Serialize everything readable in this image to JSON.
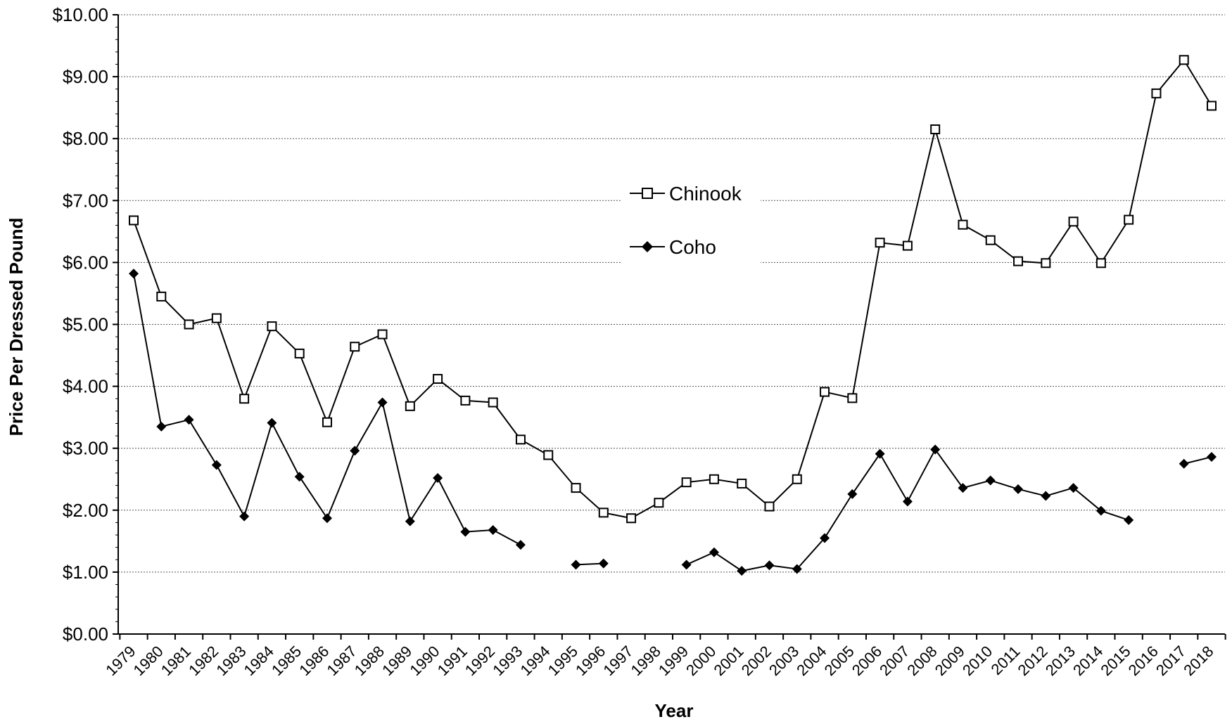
{
  "chart_data": {
    "type": "line",
    "title": "",
    "xlabel": "Year",
    "ylabel": "Price Per Dressed Pound",
    "ylim": [
      0,
      10
    ],
    "y_ticks": [
      "$0.00",
      "$1.00",
      "$2.00",
      "$3.00",
      "$4.00",
      "$5.00",
      "$6.00",
      "$7.00",
      "$8.00",
      "$9.00",
      "$10.00"
    ],
    "y_tick_values": [
      0,
      1,
      2,
      3,
      4,
      5,
      6,
      7,
      8,
      9,
      10
    ],
    "grid": "horizontal dotted",
    "legend_position": "center",
    "categories": [
      "1979",
      "1980",
      "1981",
      "1982",
      "1983",
      "1984",
      "1985",
      "1986",
      "1987",
      "1988",
      "1989",
      "1990",
      "1991",
      "1992",
      "1993",
      "1994",
      "1995",
      "1996",
      "1997",
      "1998",
      "1999",
      "2000",
      "2001",
      "2002",
      "2003",
      "2004",
      "2005",
      "2006",
      "2007",
      "2008",
      "2009",
      "2010",
      "2011",
      "2012",
      "2013",
      "2014",
      "2015",
      "2016",
      "2017",
      "2018"
    ],
    "series": [
      {
        "name": "Chinook",
        "marker": "open-square",
        "color": "#000000",
        "values": [
          6.68,
          5.45,
          5.0,
          5.1,
          3.8,
          4.97,
          4.53,
          3.42,
          4.64,
          4.84,
          3.68,
          4.12,
          3.77,
          3.74,
          3.14,
          2.89,
          2.36,
          1.96,
          1.87,
          2.12,
          2.45,
          2.5,
          2.43,
          2.06,
          2.5,
          3.91,
          3.81,
          6.32,
          6.27,
          8.15,
          6.61,
          6.36,
          6.02,
          5.99,
          6.66,
          5.99,
          6.69,
          8.73,
          9.27,
          8.53
        ]
      },
      {
        "name": "Coho",
        "marker": "filled-diamond",
        "color": "#000000",
        "values": [
          5.82,
          3.35,
          3.46,
          2.73,
          1.9,
          3.41,
          2.54,
          1.87,
          2.96,
          3.74,
          1.82,
          2.52,
          1.65,
          1.68,
          1.44,
          null,
          1.12,
          1.14,
          null,
          null,
          1.12,
          1.32,
          1.02,
          1.11,
          1.05,
          1.55,
          2.26,
          2.91,
          2.14,
          2.98,
          2.36,
          2.48,
          2.34,
          2.23,
          2.36,
          1.99,
          1.84,
          null,
          2.75,
          2.86
        ]
      }
    ]
  }
}
